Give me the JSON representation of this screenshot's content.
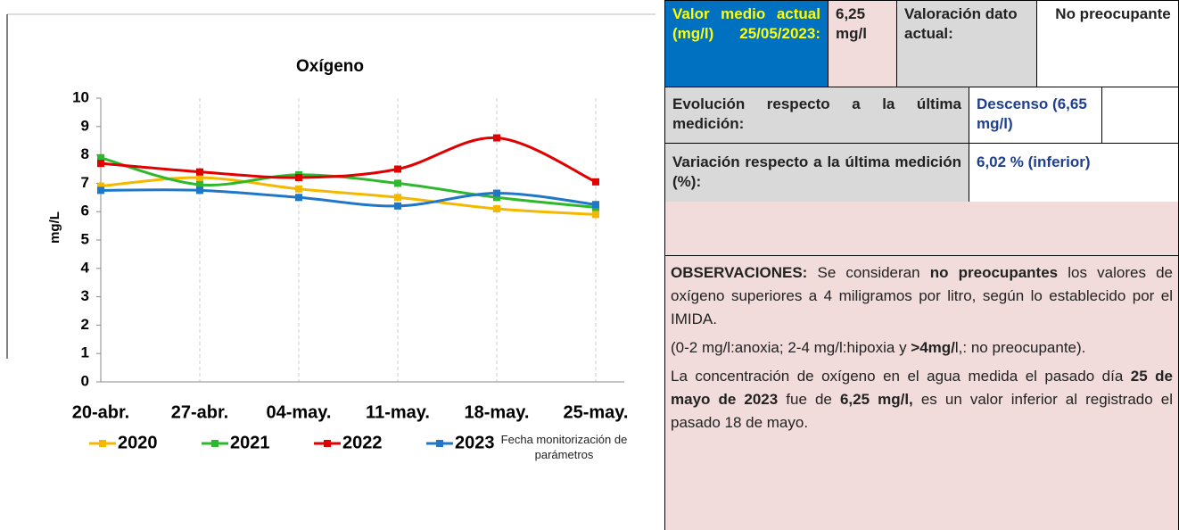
{
  "chart_data": {
    "type": "line",
    "title": "Oxígeno",
    "y_label": "mg/L",
    "x_label": "Fecha monitorización de parámetros",
    "categories": [
      "20-abr.",
      "27-abr.",
      "04-may.",
      "11-may.",
      "18-may.",
      "25-may."
    ],
    "series": [
      {
        "name": "2020",
        "color": "#f5b800",
        "values": [
          6.9,
          7.2,
          6.8,
          6.5,
          6.1,
          5.9
        ]
      },
      {
        "name": "2021",
        "color": "#2eb82e",
        "values": [
          7.9,
          6.95,
          7.3,
          7.0,
          6.5,
          6.15
        ]
      },
      {
        "name": "2022",
        "color": "#e00000",
        "values": [
          7.7,
          7.4,
          7.2,
          7.5,
          8.6,
          7.05
        ]
      },
      {
        "name": "2023",
        "color": "#1f77c8",
        "values": [
          6.75,
          6.75,
          6.5,
          6.2,
          6.65,
          6.25
        ]
      }
    ],
    "ylim": [
      0,
      10
    ],
    "yticks": [
      0,
      1,
      2,
      3,
      4,
      5,
      6,
      7,
      8,
      9,
      10
    ],
    "grid": true,
    "legend": "bottom"
  },
  "table": {
    "row1": [
      "Valor medio actual (mg/l) 25/05/2023:",
      "6,25 mg/l",
      "Valoración dato actual:",
      "No preocupante"
    ],
    "row2": [
      "Evolución respecto a la última medición:",
      "Descenso (6,65 mg/l)"
    ],
    "row3": [
      "Variación respecto a la última medición (%):",
      "6,02 % (inferior)"
    ],
    "observations": [
      [
        {
          "text": "OBSERVACIONES:",
          "bold": true
        },
        {
          "text": " Se consideran ",
          "bold": false
        },
        {
          "text": "no preocupantes",
          "bold": true
        },
        {
          "text": " los valores de oxígeno superiores a 4 miligramos por litro, según lo establecido por el IMIDA.",
          "bold": false
        }
      ],
      [
        {
          "text": "(0-2 mg/l:anoxia; 2-4 mg/l:hipoxia y ",
          "bold": false
        },
        {
          "text": ">4mg/",
          "bold": true
        },
        {
          "text": "l,: no preocupante).",
          "bold": false
        }
      ],
      [
        {
          "text": "La concentración de oxígeno en el agua medida el pasado día ",
          "bold": false
        },
        {
          "text": "25 de mayo de 2023",
          "bold": true
        },
        {
          "text": " fue de ",
          "bold": false
        },
        {
          "text": "6,25 mg/l,",
          "bold": true
        },
        {
          "text": " es un valor inferior al registrado el pasado 18 de mayo.",
          "bold": false
        }
      ]
    ]
  }
}
